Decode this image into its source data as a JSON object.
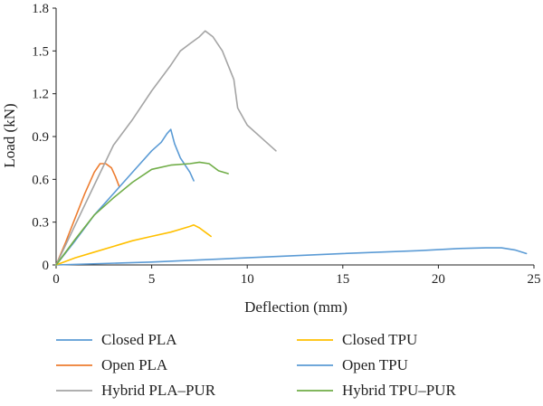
{
  "chart_data": {
    "type": "line",
    "title": "",
    "xlabel": "Deflection (mm)",
    "ylabel": "Load (kN)",
    "xlim": [
      0,
      25
    ],
    "ylim": [
      0,
      1.8
    ],
    "xticks": [
      0,
      5,
      10,
      15,
      20,
      25
    ],
    "yticks": [
      0,
      0.3,
      0.6,
      0.9,
      1.2,
      1.5,
      1.8
    ],
    "xtick_labels": [
      "0",
      "5",
      "10",
      "15",
      "20",
      "25"
    ],
    "ytick_labels": [
      "0",
      "0.3",
      "0.6",
      "0.9",
      "1.2",
      "1.5",
      "1.8"
    ],
    "grid": false,
    "legend_position": "bottom",
    "series": [
      {
        "name": "Closed PLA",
        "color": "#5b9bd5",
        "x": [
          0,
          5,
          10,
          15,
          19,
          21,
          22.5,
          23.3,
          24,
          24.6
        ],
        "y": [
          0,
          0.02,
          0.05,
          0.08,
          0.1,
          0.115,
          0.12,
          0.12,
          0.105,
          0.08
        ]
      },
      {
        "name": "Closed TPU",
        "color": "#ffc000",
        "x": [
          0,
          1,
          2,
          3,
          4,
          5,
          6,
          7,
          7.2,
          7.5,
          7.8,
          8.1
        ],
        "y": [
          0,
          0.05,
          0.09,
          0.13,
          0.17,
          0.2,
          0.23,
          0.27,
          0.28,
          0.26,
          0.23,
          0.2
        ]
      },
      {
        "name": "Open PLA",
        "color": "#ed7d31",
        "x": [
          0,
          0.5,
          1,
          1.5,
          2,
          2.3,
          2.6,
          2.9,
          3.1,
          3.3
        ],
        "y": [
          0,
          0.16,
          0.33,
          0.5,
          0.65,
          0.71,
          0.71,
          0.68,
          0.62,
          0.55
        ]
      },
      {
        "name": "Open TPU",
        "color": "#5b9bd5",
        "x": [
          0,
          1,
          2,
          3,
          4,
          5,
          5.5,
          5.8,
          6,
          6.2,
          6.5,
          7,
          7.2
        ],
        "y": [
          0,
          0.17,
          0.35,
          0.5,
          0.65,
          0.8,
          0.86,
          0.92,
          0.95,
          0.85,
          0.75,
          0.65,
          0.59
        ]
      },
      {
        "name": "Hybrid PLA–PUR",
        "color": "#a5a5a5",
        "x": [
          0,
          1,
          2,
          3,
          4,
          5,
          6,
          6.5,
          7,
          7.5,
          7.8,
          8.2,
          8.7,
          9.3,
          9.5,
          10,
          11,
          11.5
        ],
        "y": [
          0,
          0.28,
          0.56,
          0.84,
          1.02,
          1.22,
          1.4,
          1.5,
          1.55,
          1.6,
          1.64,
          1.6,
          1.5,
          1.3,
          1.1,
          0.98,
          0.86,
          0.8
        ]
      },
      {
        "name": "Hybrid TPU–PUR",
        "color": "#70ad47",
        "x": [
          0,
          1,
          2,
          3,
          4,
          5,
          6,
          7,
          7.5,
          8,
          8.5,
          9
        ],
        "y": [
          0,
          0.18,
          0.35,
          0.47,
          0.58,
          0.67,
          0.7,
          0.71,
          0.72,
          0.71,
          0.66,
          0.64
        ]
      }
    ]
  }
}
